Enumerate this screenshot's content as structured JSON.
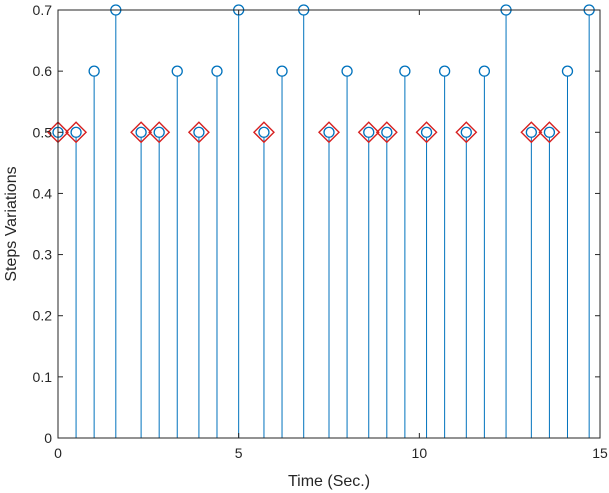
{
  "chart_data": {
    "type": "stem",
    "title": "",
    "xlabel": "Time (Sec.)",
    "ylabel": "Steps Variations",
    "xlim": [
      0,
      15
    ],
    "ylim": [
      0,
      0.7
    ],
    "xticks": [
      0,
      5,
      10,
      15
    ],
    "yticks": [
      0,
      0.1,
      0.2,
      0.3,
      0.4,
      0.5,
      0.6,
      0.7
    ],
    "grid": false,
    "legend": "none",
    "series": [
      {
        "style": "stem-circle",
        "color": "#0072BD",
        "x": [
          0.0,
          0.5,
          1.0,
          1.6,
          2.3,
          2.8,
          3.3,
          3.9,
          4.4,
          5.0,
          5.7,
          6.2,
          6.8,
          7.5,
          8.0,
          8.6,
          9.1,
          9.6,
          10.2,
          10.7,
          11.3,
          11.8,
          12.4,
          13.1,
          13.6,
          14.1,
          14.7
        ],
        "y": [
          0.5,
          0.5,
          0.6,
          0.7,
          0.5,
          0.5,
          0.6,
          0.5,
          0.6,
          0.7,
          0.5,
          0.6,
          0.7,
          0.5,
          0.6,
          0.5,
          0.5,
          0.6,
          0.5,
          0.6,
          0.5,
          0.6,
          0.7,
          0.5,
          0.5,
          0.6,
          0.7
        ]
      },
      {
        "style": "diamond",
        "color": "#D62020",
        "x": [
          0.0,
          0.5,
          2.3,
          2.8,
          3.9,
          5.7,
          7.5,
          8.6,
          9.1,
          10.2,
          11.3,
          13.1,
          13.6
        ],
        "y": [
          0.5,
          0.5,
          0.5,
          0.5,
          0.5,
          0.5,
          0.5,
          0.5,
          0.5,
          0.5,
          0.5,
          0.5,
          0.5
        ]
      }
    ]
  }
}
